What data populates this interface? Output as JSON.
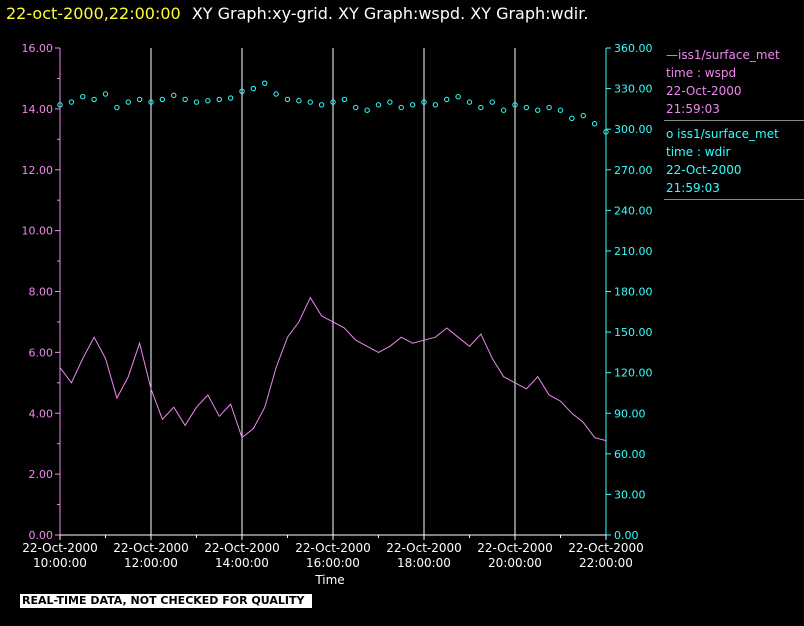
{
  "header": {
    "timestamp": "22-oct-2000,22:00:00",
    "titles": "XY Graph:xy-grid.  XY Graph:wspd.  XY Graph:wdir."
  },
  "legend": [
    {
      "line1": "—iss1/surface_met",
      "line2": "time : wspd",
      "line3": "22-Oct-2000",
      "line4": "21:59:03",
      "color": "#ee88ee"
    },
    {
      "line1": "o iss1/surface_met",
      "line2": "time : wdir",
      "line3": "22-Oct-2000",
      "line4": "21:59:03",
      "color": "#33ffff"
    }
  ],
  "footer": "REAL-TIME DATA, NOT CHECKED FOR QUALITY",
  "chart_data": {
    "type": "line",
    "xlabel": "Time",
    "x_ticks": [
      {
        "hour": 10,
        "date": "22-Oct-2000",
        "time": "10:00:00"
      },
      {
        "hour": 12,
        "date": "22-Oct-2000",
        "time": "12:00:00"
      },
      {
        "hour": 14,
        "date": "22-Oct-2000",
        "time": "14:00:00"
      },
      {
        "hour": 16,
        "date": "22-Oct-2000",
        "time": "16:00:00"
      },
      {
        "hour": 18,
        "date": "22-Oct-2000",
        "time": "18:00:00"
      },
      {
        "hour": 20,
        "date": "22-Oct-2000",
        "time": "20:00:00"
      },
      {
        "hour": 22,
        "date": "22-Oct-2000",
        "time": "22:00:00"
      }
    ],
    "xlim": [
      10,
      22
    ],
    "grid": "vertical",
    "y_left": {
      "ylim": [
        0,
        16
      ],
      "ticks": [
        "0.00",
        "2.00",
        "4.00",
        "6.00",
        "8.00",
        "10.00",
        "12.00",
        "14.00",
        "16.00"
      ],
      "color": "#ee88ee"
    },
    "y_right": {
      "ylim": [
        0,
        360
      ],
      "ticks": [
        "0.00",
        "30.00",
        "60.00",
        "90.00",
        "120.00",
        "150.00",
        "180.00",
        "210.00",
        "240.00",
        "270.00",
        "300.00",
        "330.00",
        "360.00"
      ],
      "color": "#33ffff"
    },
    "series": [
      {
        "label": "iss1/surface_met time : wspd",
        "axis": "left",
        "style": "line",
        "color": "#ee88ee",
        "points": [
          [
            10.0,
            5.5
          ],
          [
            10.25,
            5.0
          ],
          [
            10.5,
            5.8
          ],
          [
            10.75,
            6.5
          ],
          [
            11.0,
            5.8
          ],
          [
            11.25,
            4.5
          ],
          [
            11.5,
            5.2
          ],
          [
            11.75,
            6.3
          ],
          [
            12.0,
            4.8
          ],
          [
            12.25,
            3.8
          ],
          [
            12.5,
            4.2
          ],
          [
            12.75,
            3.6
          ],
          [
            13.0,
            4.2
          ],
          [
            13.25,
            4.6
          ],
          [
            13.5,
            3.9
          ],
          [
            13.75,
            4.3
          ],
          [
            14.0,
            3.2
          ],
          [
            14.25,
            3.5
          ],
          [
            14.5,
            4.2
          ],
          [
            14.75,
            5.5
          ],
          [
            15.0,
            6.5
          ],
          [
            15.25,
            7.0
          ],
          [
            15.5,
            7.8
          ],
          [
            15.75,
            7.2
          ],
          [
            16.0,
            7.0
          ],
          [
            16.25,
            6.8
          ],
          [
            16.5,
            6.4
          ],
          [
            16.75,
            6.2
          ],
          [
            17.0,
            6.0
          ],
          [
            17.25,
            6.2
          ],
          [
            17.5,
            6.5
          ],
          [
            17.75,
            6.3
          ],
          [
            18.0,
            6.4
          ],
          [
            18.25,
            6.5
          ],
          [
            18.5,
            6.8
          ],
          [
            18.75,
            6.5
          ],
          [
            19.0,
            6.2
          ],
          [
            19.25,
            6.6
          ],
          [
            19.5,
            5.8
          ],
          [
            19.75,
            5.2
          ],
          [
            20.0,
            5.0
          ],
          [
            20.25,
            4.8
          ],
          [
            20.5,
            5.2
          ],
          [
            20.75,
            4.6
          ],
          [
            21.0,
            4.4
          ],
          [
            21.25,
            4.0
          ],
          [
            21.5,
            3.7
          ],
          [
            21.75,
            3.2
          ],
          [
            22.0,
            3.1
          ]
        ]
      },
      {
        "label": "iss1/surface_met time : wdir",
        "axis": "right",
        "style": "scatter",
        "color": "#33ffff",
        "points": [
          [
            10.0,
            318
          ],
          [
            10.25,
            320
          ],
          [
            10.5,
            324
          ],
          [
            10.75,
            322
          ],
          [
            11.0,
            326
          ],
          [
            11.25,
            316
          ],
          [
            11.5,
            320
          ],
          [
            11.75,
            322
          ],
          [
            12.0,
            320
          ],
          [
            12.25,
            322
          ],
          [
            12.5,
            325
          ],
          [
            12.75,
            322
          ],
          [
            13.0,
            320
          ],
          [
            13.25,
            321
          ],
          [
            13.5,
            322
          ],
          [
            13.75,
            323
          ],
          [
            14.0,
            328
          ],
          [
            14.25,
            330
          ],
          [
            14.5,
            334
          ],
          [
            14.75,
            326
          ],
          [
            15.0,
            322
          ],
          [
            15.25,
            321
          ],
          [
            15.5,
            320
          ],
          [
            15.75,
            318
          ],
          [
            16.0,
            320
          ],
          [
            16.25,
            322
          ],
          [
            16.5,
            316
          ],
          [
            16.75,
            314
          ],
          [
            17.0,
            318
          ],
          [
            17.25,
            320
          ],
          [
            17.5,
            316
          ],
          [
            17.75,
            318
          ],
          [
            18.0,
            320
          ],
          [
            18.25,
            318
          ],
          [
            18.5,
            322
          ],
          [
            18.75,
            324
          ],
          [
            19.0,
            320
          ],
          [
            19.25,
            316
          ],
          [
            19.5,
            320
          ],
          [
            19.75,
            314
          ],
          [
            20.0,
            318
          ],
          [
            20.25,
            316
          ],
          [
            20.5,
            314
          ],
          [
            20.75,
            316
          ],
          [
            21.0,
            314
          ],
          [
            21.25,
            308
          ],
          [
            21.5,
            310
          ],
          [
            21.75,
            304
          ],
          [
            22.0,
            298
          ]
        ]
      }
    ]
  }
}
